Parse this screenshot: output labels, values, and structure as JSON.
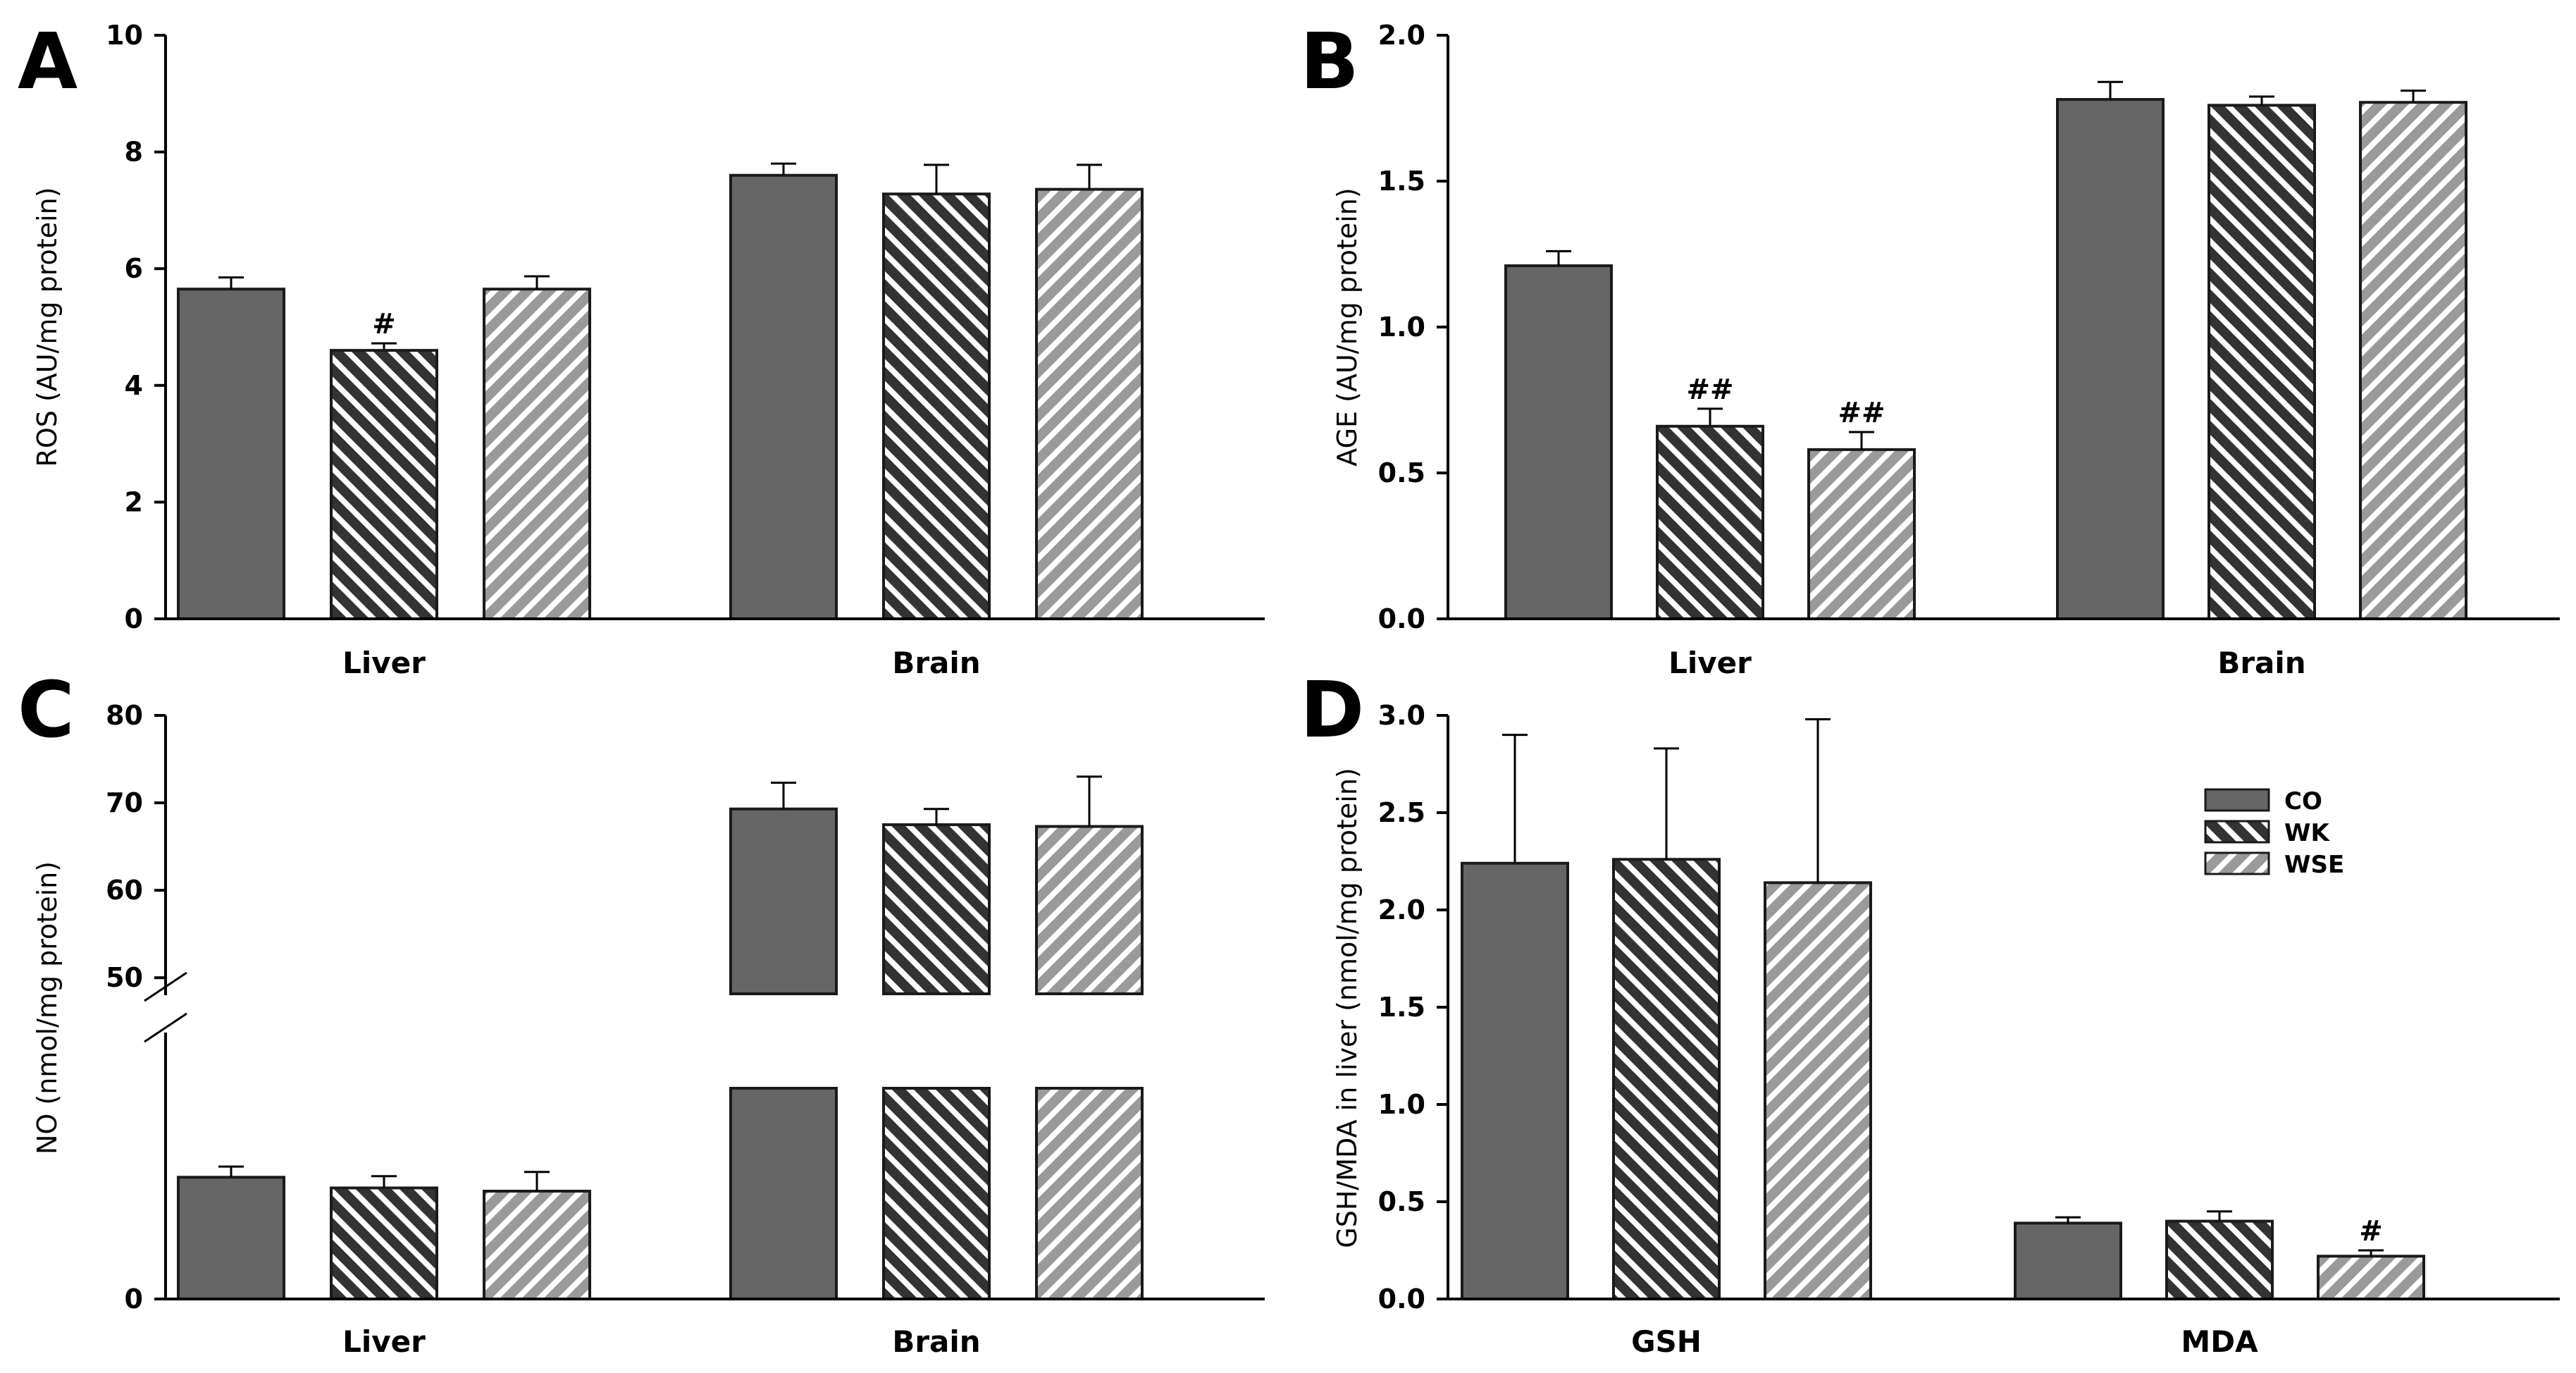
{
  "figure": {
    "panels": [
      "A",
      "B",
      "C",
      "D"
    ]
  },
  "chart_data": [
    {
      "panel": "A",
      "type": "bar",
      "categories": [
        "Liver",
        "Brain"
      ],
      "series": [
        {
          "name": "CO",
          "values": [
            5.65,
            7.6
          ],
          "errors": [
            0.2,
            0.2
          ],
          "labels": [
            "",
            ""
          ]
        },
        {
          "name": "WK",
          "values": [
            4.6,
            7.28
          ],
          "errors": [
            0.12,
            0.5
          ],
          "labels": [
            "#",
            ""
          ]
        },
        {
          "name": "WSE",
          "values": [
            5.65,
            7.36
          ],
          "errors": [
            0.22,
            0.42
          ],
          "labels": [
            "",
            ""
          ]
        }
      ],
      "ylabel": "ROS (AU/mg protein)",
      "ylim": [
        0,
        10
      ],
      "yticks": [
        0,
        2,
        4,
        6,
        8,
        10
      ],
      "ytick_labels": [
        "0",
        "2",
        "4",
        "6",
        "8",
        "10"
      ]
    },
    {
      "panel": "B",
      "type": "bar",
      "categories": [
        "Liver",
        "Brain"
      ],
      "series": [
        {
          "name": "CO",
          "values": [
            1.21,
            1.78
          ],
          "errors": [
            0.05,
            0.06
          ],
          "labels": [
            "",
            ""
          ]
        },
        {
          "name": "WK",
          "values": [
            0.66,
            1.76
          ],
          "errors": [
            0.06,
            0.03
          ],
          "labels": [
            "##",
            ""
          ]
        },
        {
          "name": "WSE",
          "values": [
            0.58,
            1.77
          ],
          "errors": [
            0.06,
            0.04
          ],
          "labels": [
            "##",
            ""
          ]
        }
      ],
      "ylabel": "AGE (AU/mg protein)",
      "ylim": [
        0,
        2
      ],
      "yticks": [
        0,
        0.5,
        1,
        1.5,
        2
      ],
      "ytick_labels": [
        "0.0",
        "0.5",
        "1.0",
        "1.5",
        "2.0"
      ]
    },
    {
      "panel": "C",
      "type": "bar",
      "broken_axis": true,
      "break_range": [
        20,
        48
      ],
      "categories": [
        "Liver",
        "Brain"
      ],
      "series": [
        {
          "name": "CO",
          "values": [
            11.4,
            69.3
          ],
          "errors": [
            1.0,
            3.0
          ],
          "labels": [
            "",
            ""
          ]
        },
        {
          "name": "WK",
          "values": [
            10.4,
            67.5
          ],
          "errors": [
            1.1,
            1.8
          ],
          "labels": [
            "",
            ""
          ]
        },
        {
          "name": "WSE",
          "values": [
            10.1,
            67.3
          ],
          "errors": [
            1.8,
            5.7
          ],
          "labels": [
            "",
            ""
          ]
        }
      ],
      "ylabel": "NO (nmol/mg protein)",
      "yticks": [
        0,
        50,
        60,
        70,
        80
      ],
      "ytick_labels": [
        "0",
        "50",
        "60",
        "70",
        "80"
      ]
    },
    {
      "panel": "D",
      "type": "bar",
      "categories": [
        "GSH",
        "MDA"
      ],
      "series": [
        {
          "name": "CO",
          "values": [
            2.24,
            0.39
          ],
          "errors": [
            0.66,
            0.03
          ],
          "labels": [
            "",
            ""
          ]
        },
        {
          "name": "WK",
          "values": [
            2.26,
            0.4
          ],
          "errors": [
            0.57,
            0.05
          ],
          "labels": [
            "",
            ""
          ]
        },
        {
          "name": "WSE",
          "values": [
            2.14,
            0.22
          ],
          "errors": [
            0.84,
            0.03
          ],
          "labels": [
            "",
            "#"
          ]
        }
      ],
      "ylabel": "GSH/MDA in liver (nmol/mg protein)",
      "ylim": [
        0,
        3
      ],
      "yticks": [
        0,
        0.5,
        1,
        1.5,
        2,
        2.5,
        3
      ],
      "ytick_labels": [
        "0.0",
        "0.5",
        "1.0",
        "1.5",
        "2.0",
        "2.5",
        "3.0"
      ],
      "legend": {
        "position": "top-right",
        "entries": [
          "CO",
          "WK",
          "WSE"
        ]
      }
    }
  ]
}
